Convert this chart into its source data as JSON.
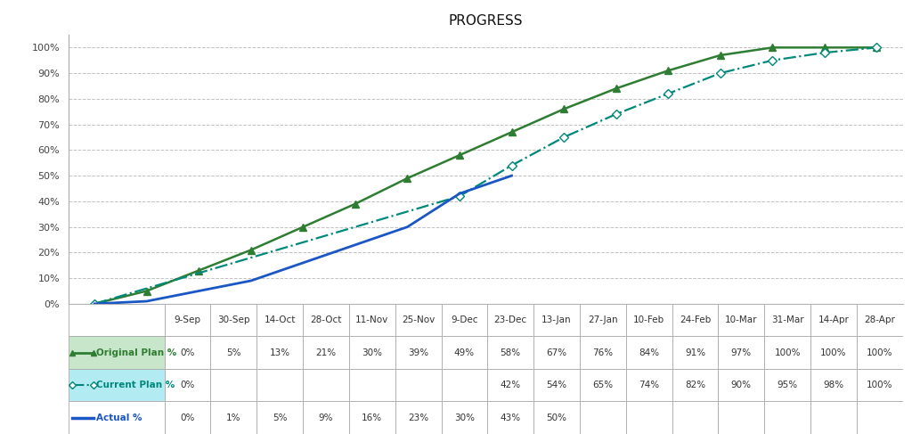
{
  "title": "PROGRESS",
  "x_labels": [
    "9-Sep",
    "30-Sep",
    "14-Oct",
    "28-Oct",
    "11-Nov",
    "25-Nov",
    "9-Dec",
    "23-Dec",
    "13-Jan",
    "27-Jan",
    "10-Feb",
    "24-Feb",
    "10-Mar",
    "31-Mar",
    "14-Apr",
    "28-Apr"
  ],
  "original_plan": [
    0,
    5,
    13,
    21,
    30,
    39,
    49,
    58,
    67,
    76,
    84,
    91,
    97,
    100,
    100,
    100
  ],
  "current_plan": [
    0,
    null,
    null,
    null,
    null,
    null,
    null,
    42,
    54,
    65,
    74,
    82,
    90,
    95,
    98,
    100
  ],
  "actual": [
    0,
    1,
    5,
    9,
    16,
    23,
    30,
    43,
    50,
    null,
    null,
    null,
    null,
    null,
    null,
    null
  ],
  "original_plan_color": "#2E7D32",
  "current_plan_color": "#00897B",
  "actual_color": "#1A56C4",
  "background_color": "#FFFFFF",
  "grid_color": "#BBBBBB",
  "title_fontsize": 11,
  "tick_fontsize": 8,
  "table_fontsize": 7.5,
  "table_header_fontsize": 7.5,
  "legend_label_color_orig": "#2E7D32",
  "legend_label_color_curr": "#00897B",
  "legend_label_color_act": "#1A56C4",
  "row_bg_orig": "#C8E6C9",
  "row_bg_curr": "#B2EBF2",
  "row_bg_act": "#FFFFFF"
}
